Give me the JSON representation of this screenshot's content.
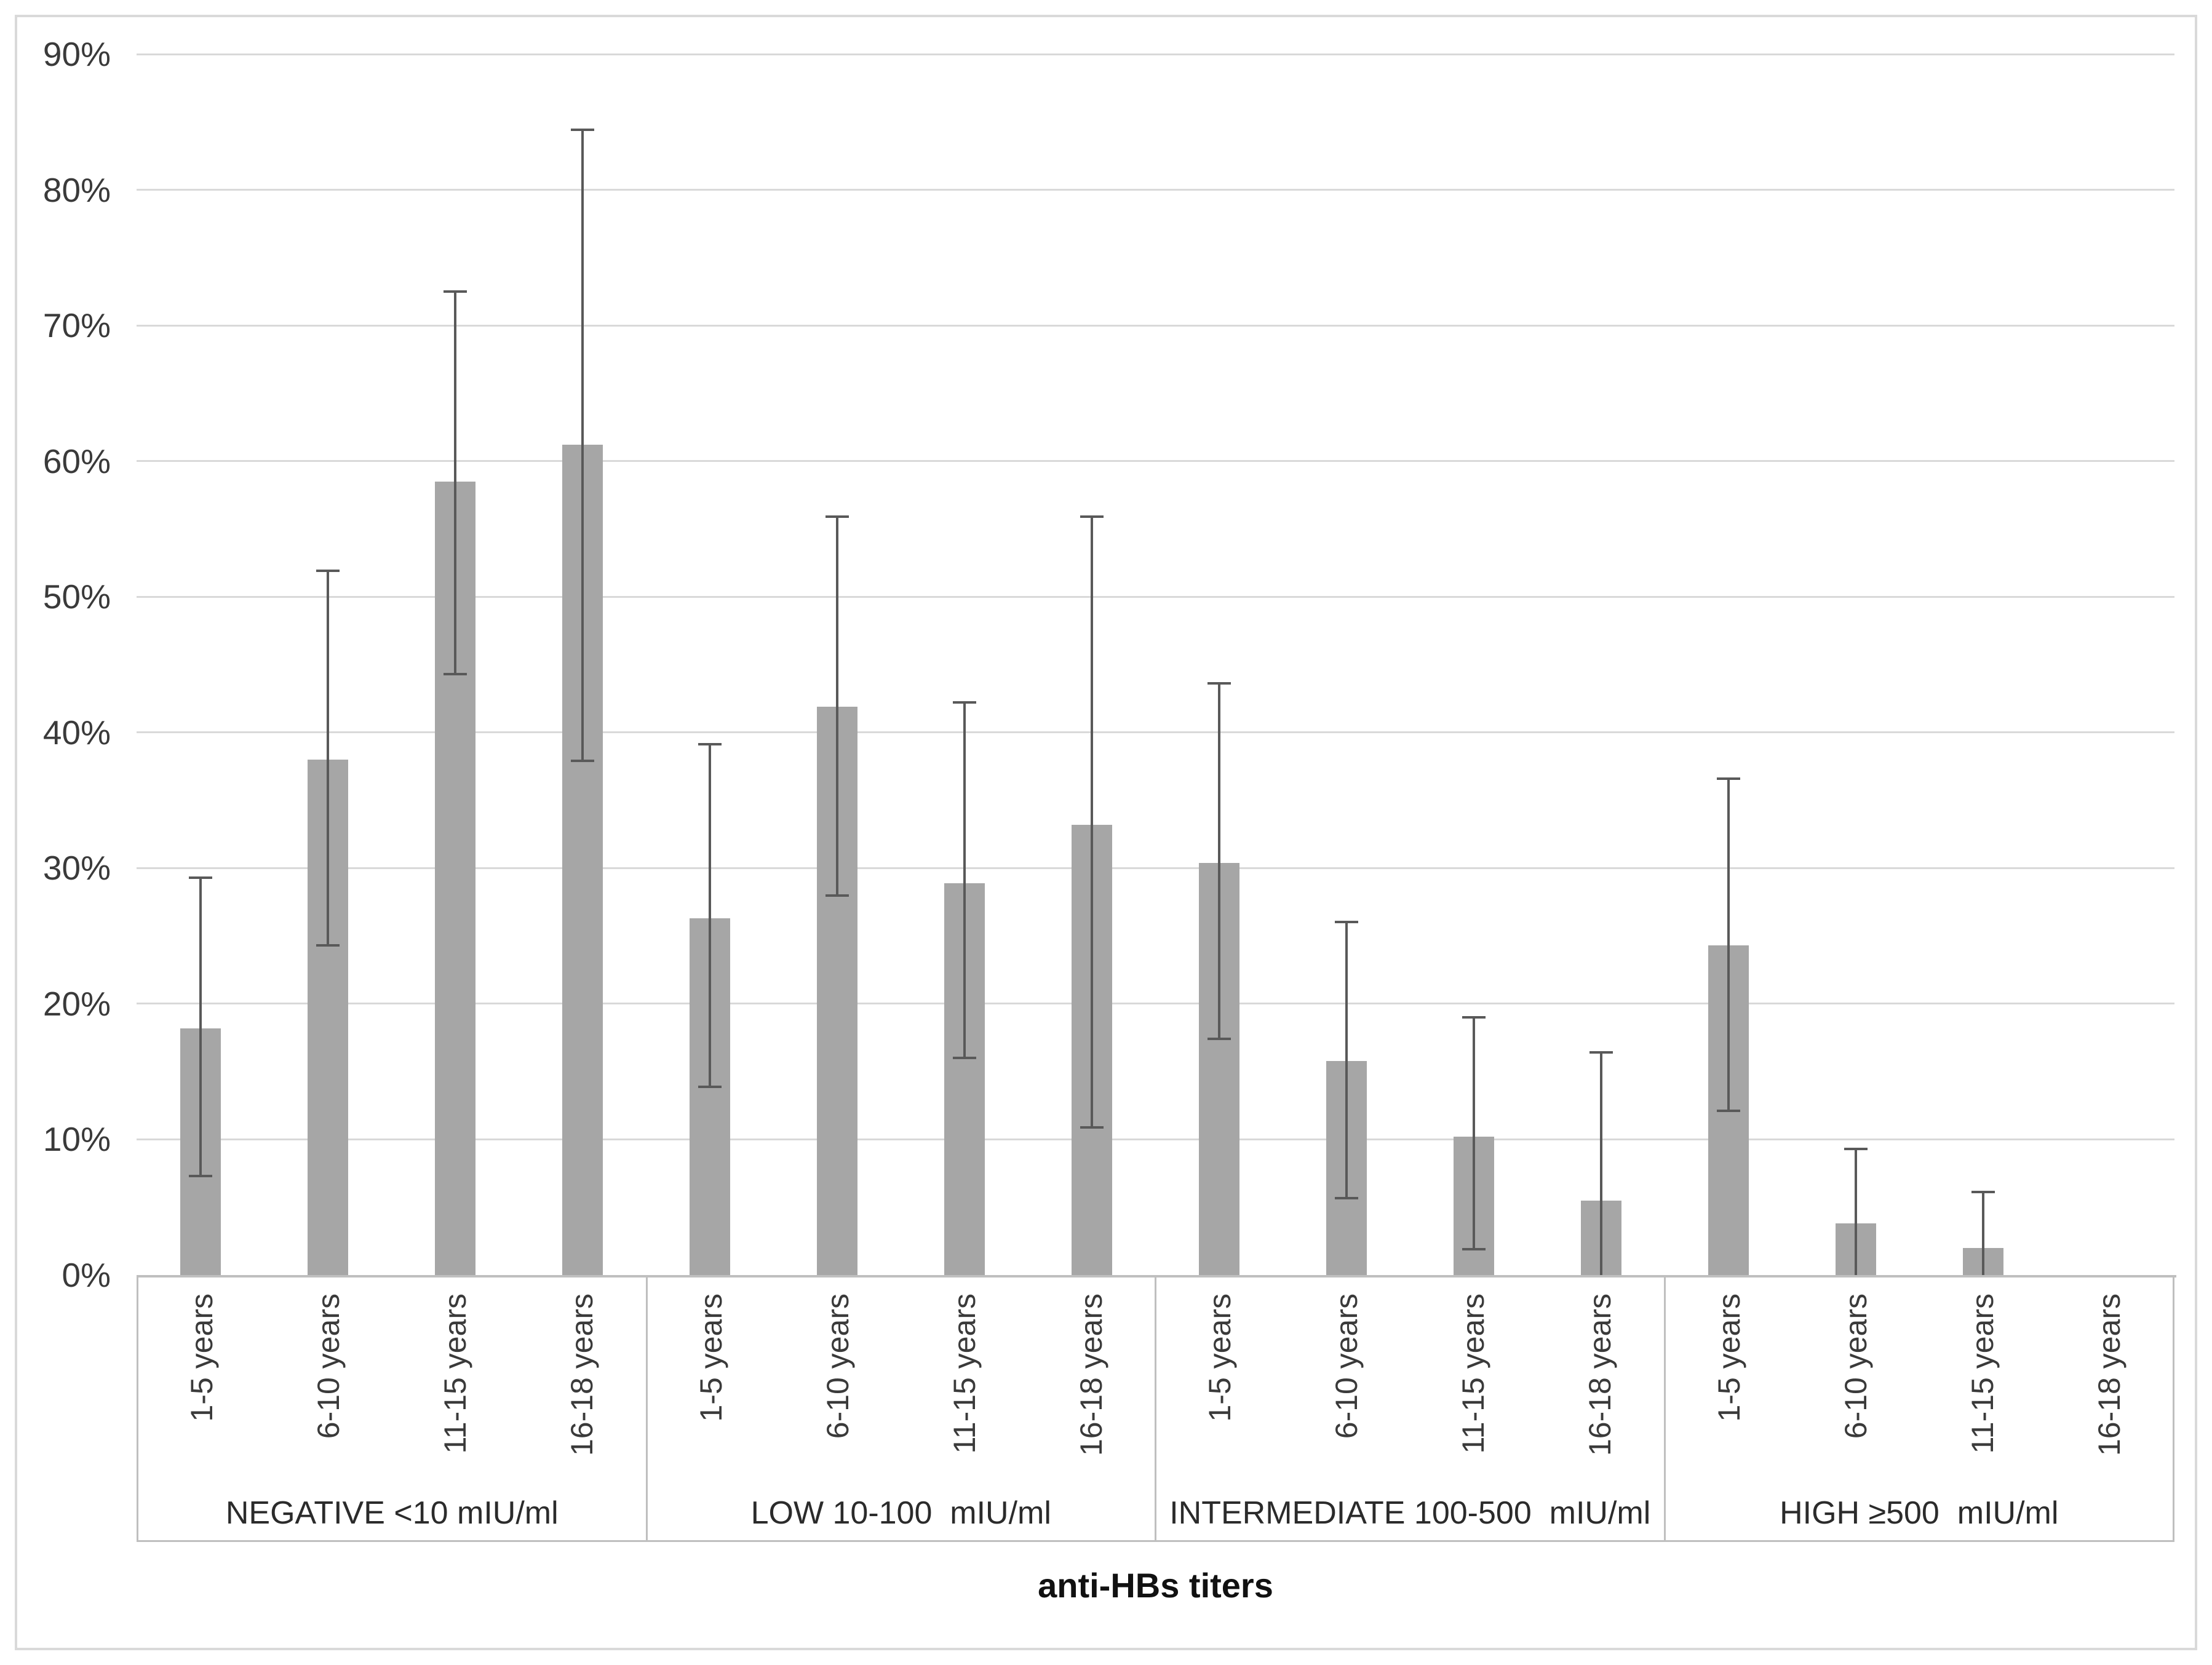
{
  "chart_data": {
    "type": "bar",
    "title": "",
    "xlabel": "anti-HBs titers",
    "ylabel": "",
    "ylim": [
      0,
      90
    ],
    "ytick_step": 10,
    "yticks": [
      "0%",
      "10%",
      "20%",
      "30%",
      "40%",
      "50%",
      "60%",
      "70%",
      "80%",
      "90%"
    ],
    "grid": true,
    "legend": null,
    "bar_color": "#a6a6a6",
    "error_bar_color": "#595959",
    "gridline_color": "#d9d9d9",
    "axis_line_color": "#bfbfbf",
    "categories_per_group": [
      "1-5 years",
      "6-10 years",
      "11-15 years",
      "16-18 years"
    ],
    "groups": [
      {
        "label": "NEGATIVE <10 mIU/ml",
        "series": [
          {
            "category": "1-5 years",
            "value": 18.2,
            "ci_low": 7.2,
            "ci_high": 29.4
          },
          {
            "category": "6-10 years",
            "value": 38.0,
            "ci_low": 24.2,
            "ci_high": 52.0
          },
          {
            "category": "11-15 years",
            "value": 58.5,
            "ci_low": 44.2,
            "ci_high": 72.6
          },
          {
            "category": "16-18 years",
            "value": 61.2,
            "ci_low": 37.8,
            "ci_high": 84.5
          }
        ]
      },
      {
        "label": "LOW 10-100  mIU/ml",
        "series": [
          {
            "category": "1-5 years",
            "value": 26.3,
            "ci_low": 13.8,
            "ci_high": 39.2
          },
          {
            "category": "6-10 years",
            "value": 41.9,
            "ci_low": 27.9,
            "ci_high": 56.0
          },
          {
            "category": "11-15 years",
            "value": 28.9,
            "ci_low": 15.9,
            "ci_high": 42.3
          },
          {
            "category": "16-18 years",
            "value": 33.2,
            "ci_low": 10.8,
            "ci_high": 56.0
          }
        ]
      },
      {
        "label": "INTERMEDIATE 100-500  mIU/ml",
        "series": [
          {
            "category": "1-5 years",
            "value": 30.4,
            "ci_low": 17.3,
            "ci_high": 43.7
          },
          {
            "category": "6-10 years",
            "value": 15.8,
            "ci_low": 5.6,
            "ci_high": 26.1
          },
          {
            "category": "11-15 years",
            "value": 10.2,
            "ci_low": 1.8,
            "ci_high": 19.1
          },
          {
            "category": "16-18 years",
            "value": 5.5,
            "ci_low": 0,
            "ci_high": 16.5
          }
        ]
      },
      {
        "label": "HIGH ≥500  mIU/ml",
        "series": [
          {
            "category": "1-5 years",
            "value": 24.3,
            "ci_low": 12.0,
            "ci_high": 36.7
          },
          {
            "category": "6-10 years",
            "value": 3.8,
            "ci_low": 0,
            "ci_high": 9.4
          },
          {
            "category": "11-15 years",
            "value": 2.0,
            "ci_low": 0,
            "ci_high": 6.2
          },
          {
            "category": "16-18 years",
            "value": 0,
            "ci_low": null,
            "ci_high": null
          }
        ]
      }
    ]
  }
}
